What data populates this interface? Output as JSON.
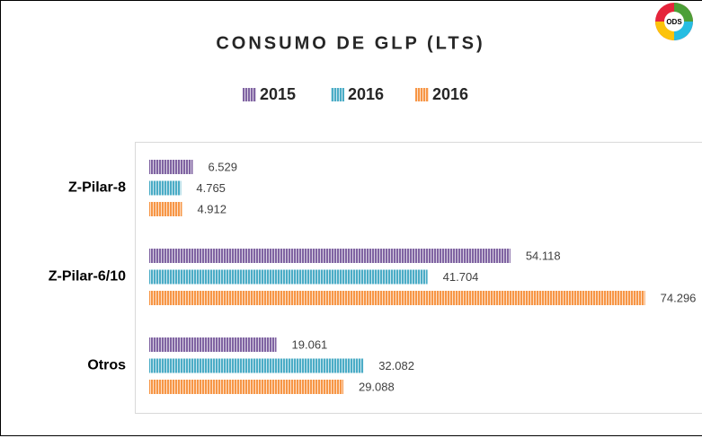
{
  "chart_data": {
    "type": "hbar",
    "title": "CONSUMO DE GLP (LTS)",
    "logo_text": "ODS",
    "categories": [
      "Z-Pilar-8",
      "Z-Pilar-6/10",
      "Otros"
    ],
    "series": [
      {
        "name": "2015",
        "color": "#8064a2",
        "values": [
          6529,
          54118,
          19061
        ],
        "value_labels": [
          "6.529",
          "54.118",
          "19.061"
        ]
      },
      {
        "name": "2016",
        "color": "#4bacc6",
        "values": [
          4765,
          41704,
          32082
        ],
        "value_labels": [
          "4.765",
          "41.704",
          "32.082"
        ]
      },
      {
        "name": "2016",
        "color": "#f79646",
        "values": [
          4912,
          74296,
          29088
        ],
        "value_labels": [
          "4.912",
          "74.296",
          "29.088"
        ]
      }
    ],
    "xlim": [
      0,
      80000
    ],
    "legend": "top"
  }
}
